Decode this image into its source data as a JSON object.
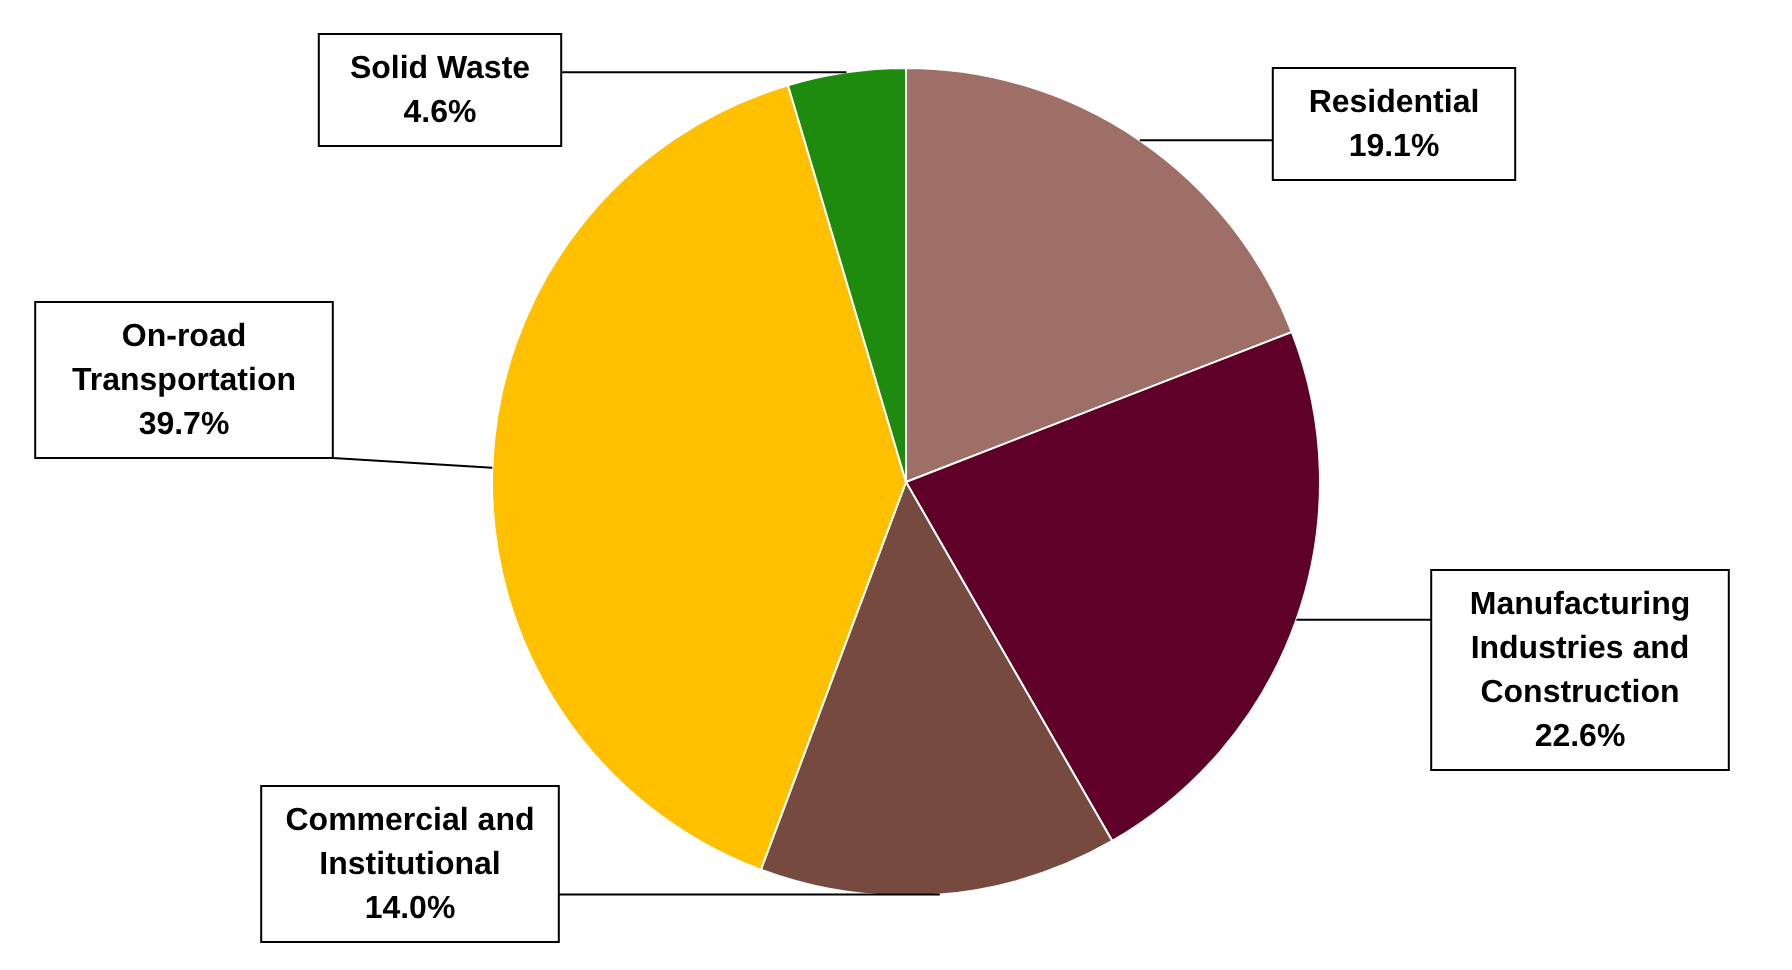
{
  "chart_data": {
    "type": "pie",
    "categories": [
      "Residential",
      "Manufacturing Industries and Construction",
      "Commercial and Institutional",
      "On-road Transportation",
      "Solid Waste"
    ],
    "values": [
      19.1,
      22.6,
      14.0,
      39.7,
      4.6
    ],
    "colors": [
      "#9e6f66",
      "#5f0028",
      "#764a3f",
      "#ffc000",
      "#1e8a0e"
    ],
    "value_labels": [
      "19.1%",
      "22.6%",
      "14.0%",
      "39.7%",
      "4.6%"
    ],
    "legend": false
  }
}
